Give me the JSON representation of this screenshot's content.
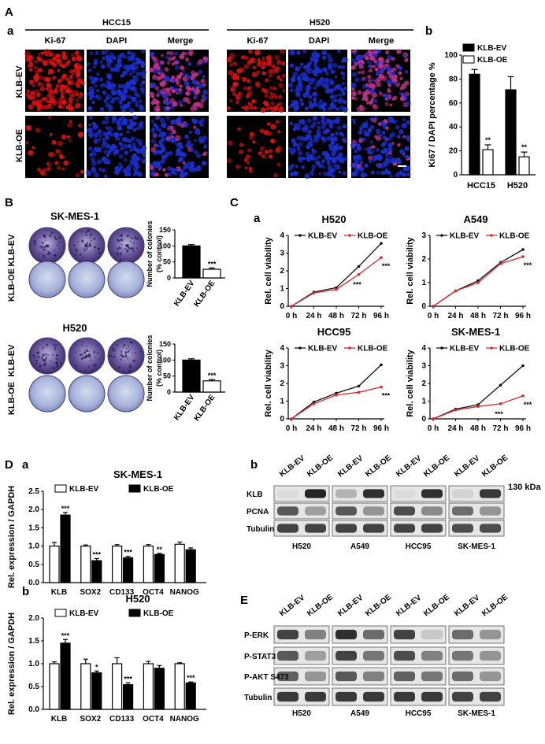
{
  "panel_labels": {
    "A": "A",
    "A_a": "a",
    "A_b": "b",
    "B": "B",
    "C": "C",
    "C_a": "a",
    "D": "D",
    "D_a": "a",
    "D_b": "b",
    "D_blot": "b",
    "E": "E"
  },
  "panelA": {
    "cell_lines": [
      "HCC15",
      "H520"
    ],
    "stains": [
      "Ki-67",
      "DAPI",
      "Merge"
    ],
    "rows": [
      "KLB-EV",
      "KLB-OE"
    ]
  },
  "panelB": {
    "titles": [
      "SK-MES-1",
      "H520"
    ],
    "rows": [
      "KLB-EV",
      "KLB-OE"
    ]
  },
  "panelE_lines": [
    "H520",
    "A549",
    "HCC95",
    "SK-MES-1"
  ],
  "blot_lanes": [
    "KLB-EV",
    "KLB-OE"
  ],
  "blotD": {
    "rows": [
      "KLB",
      "PCNA",
      "Tubulin"
    ],
    "marker": "130 kDa"
  },
  "blotE": {
    "rows": [
      "P-ERK",
      "P-STAT3",
      "P-AKT S473",
      "Tubulin"
    ]
  },
  "legend": {
    "ev": "KLB-EV",
    "oe": "KLB-OE"
  },
  "colors": {
    "ev": "#111111",
    "oe": "#e0262b",
    "dapi": "#1a2fd0",
    "ki67": "#e01010"
  },
  "chart_data": [
    {
      "id": "A_b",
      "type": "bar",
      "title": "",
      "xlabel": "",
      "ylabel": "Ki67 / DAPI percentage %",
      "categories": [
        "HCC15",
        "H520"
      ],
      "ylim": [
        0,
        100
      ],
      "yticks": [
        0,
        20,
        40,
        60,
        80,
        100
      ],
      "series": [
        {
          "name": "KLB-EV",
          "values": [
            84,
            71
          ]
        },
        {
          "name": "KLB-OE",
          "values": [
            21,
            15
          ]
        }
      ],
      "errors": [
        [
          4,
          11
        ],
        [
          4,
          4
        ]
      ],
      "annotations": [
        "**",
        "**"
      ],
      "legend_position": "top-right"
    },
    {
      "id": "B_sk",
      "type": "bar",
      "title": "SK-MES-1",
      "ylabel": "Number of colonies (% control)",
      "categories": [
        "KLB-EV",
        "KLB-OE"
      ],
      "values": [
        100,
        27
      ],
      "errors": [
        4,
        4
      ],
      "ylim": [
        0,
        150
      ],
      "yticks": [
        0,
        50,
        100,
        150
      ],
      "annotations": [
        "",
        "***"
      ]
    },
    {
      "id": "B_h520",
      "type": "bar",
      "title": "H520",
      "ylabel": "Number of colonies (% control)",
      "categories": [
        "KLB-EV",
        "KLB-OE"
      ],
      "values": [
        100,
        35
      ],
      "errors": [
        4,
        4
      ],
      "ylim": [
        0,
        150
      ],
      "yticks": [
        0,
        50,
        100,
        150
      ],
      "annotations": [
        "",
        "***"
      ]
    },
    {
      "id": "C_H520",
      "type": "line",
      "title": "H520",
      "ylabel": "Rel. cell viability",
      "x": [
        "0 h",
        "24 h",
        "48 h",
        "72 h",
        "96 h"
      ],
      "ylim": [
        0,
        4
      ],
      "yticks": [
        0,
        1,
        2,
        3,
        4
      ],
      "series": [
        {
          "name": "KLB-EV",
          "values": [
            0,
            0.8,
            1.05,
            2.25,
            3.55
          ]
        },
        {
          "name": "KLB-OE",
          "values": [
            0,
            0.75,
            0.95,
            1.8,
            2.75
          ]
        }
      ],
      "annotations": [
        "",
        "",
        "",
        "***",
        "***"
      ],
      "legend_position": "top-left"
    },
    {
      "id": "C_A549",
      "type": "line",
      "title": "A549",
      "ylabel": "Rel. cell viability",
      "x": [
        "0 h",
        "24 h",
        "48 h",
        "72 h",
        "96 h"
      ],
      "ylim": [
        0,
        3
      ],
      "yticks": [
        0,
        1,
        2,
        3
      ],
      "series": [
        {
          "name": "KLB-EV",
          "values": [
            0,
            0.65,
            1.08,
            1.85,
            2.4
          ]
        },
        {
          "name": "KLB-OE",
          "values": [
            0,
            0.65,
            1.0,
            1.8,
            2.1
          ]
        }
      ],
      "annotations": [
        "",
        "",
        "",
        "",
        "***"
      ],
      "legend_position": "top-left"
    },
    {
      "id": "C_HCC95",
      "type": "line",
      "title": "HCC95",
      "ylabel": "Rel. cell viability",
      "x": [
        "0 h",
        "24 h",
        "48 h",
        "72 h",
        "96 h"
      ],
      "ylim": [
        0,
        4
      ],
      "yticks": [
        0,
        1,
        2,
        3,
        4
      ],
      "series": [
        {
          "name": "KLB-EV",
          "values": [
            0,
            0.95,
            1.45,
            1.85,
            3.05
          ]
        },
        {
          "name": "KLB-OE",
          "values": [
            0,
            0.85,
            1.35,
            1.5,
            1.8
          ]
        }
      ],
      "annotations": [
        "",
        "",
        "",
        "",
        "***"
      ],
      "legend_position": "top-left"
    },
    {
      "id": "C_SKMES1",
      "type": "line",
      "title": "SK-MES-1",
      "ylabel": "Rel. cell viability",
      "x": [
        "0 h",
        "24 h",
        "48 h",
        "72 h",
        "96 h"
      ],
      "ylim": [
        0,
        4
      ],
      "yticks": [
        0,
        1,
        2,
        3,
        4
      ],
      "series": [
        {
          "name": "KLB-EV",
          "values": [
            0,
            0.55,
            0.8,
            1.9,
            3.0
          ]
        },
        {
          "name": "KLB-OE",
          "values": [
            0,
            0.5,
            0.7,
            0.85,
            1.3
          ]
        }
      ],
      "annotations": [
        "",
        "",
        "",
        "***",
        "***"
      ],
      "legend_position": "top-left"
    },
    {
      "id": "D_a",
      "type": "bar",
      "title": "SK-MES-1",
      "ylabel": "Rel. expression / GAPDH",
      "categories": [
        "KLB",
        "SOX2",
        "CD133",
        "OCT4",
        "NANOG"
      ],
      "ylim": [
        0,
        2.5
      ],
      "yticks": [
        0.0,
        0.5,
        1.0,
        1.5,
        2.0,
        2.5
      ],
      "series": [
        {
          "name": "KLB-EV",
          "values": [
            1.0,
            1.0,
            1.0,
            1.0,
            1.05
          ]
        },
        {
          "name": "KLB-OE",
          "values": [
            1.85,
            0.6,
            0.68,
            0.77,
            0.9
          ]
        }
      ],
      "errors": [
        [
          0.1,
          0.03,
          0.04,
          0.04,
          0.06
        ],
        [
          0.07,
          0.06,
          0.04,
          0.03,
          0.05
        ]
      ],
      "annotations": [
        "***",
        "***",
        "***",
        "**",
        ""
      ],
      "legend_position": "top"
    },
    {
      "id": "D_b",
      "type": "bar",
      "title": "H520",
      "ylabel": "Rel. expression / GAPDH",
      "categories": [
        "KLB",
        "SOX2",
        "CD133",
        "OCT4",
        "NANOG"
      ],
      "ylim": [
        0,
        2.0
      ],
      "yticks": [
        0.0,
        0.5,
        1.0,
        1.5,
        2.0
      ],
      "series": [
        {
          "name": "KLB-EV",
          "values": [
            1.0,
            1.0,
            1.0,
            1.0,
            1.0
          ]
        },
        {
          "name": "KLB-OE",
          "values": [
            1.45,
            0.8,
            0.54,
            0.9,
            0.58
          ]
        }
      ],
      "errors": [
        [
          0.04,
          0.1,
          0.13,
          0.05,
          0.02
        ],
        [
          0.08,
          0.04,
          0.04,
          0.06,
          0.02
        ]
      ],
      "annotations": [
        "***",
        "*",
        "***",
        "",
        "***"
      ],
      "legend_position": "top"
    }
  ]
}
